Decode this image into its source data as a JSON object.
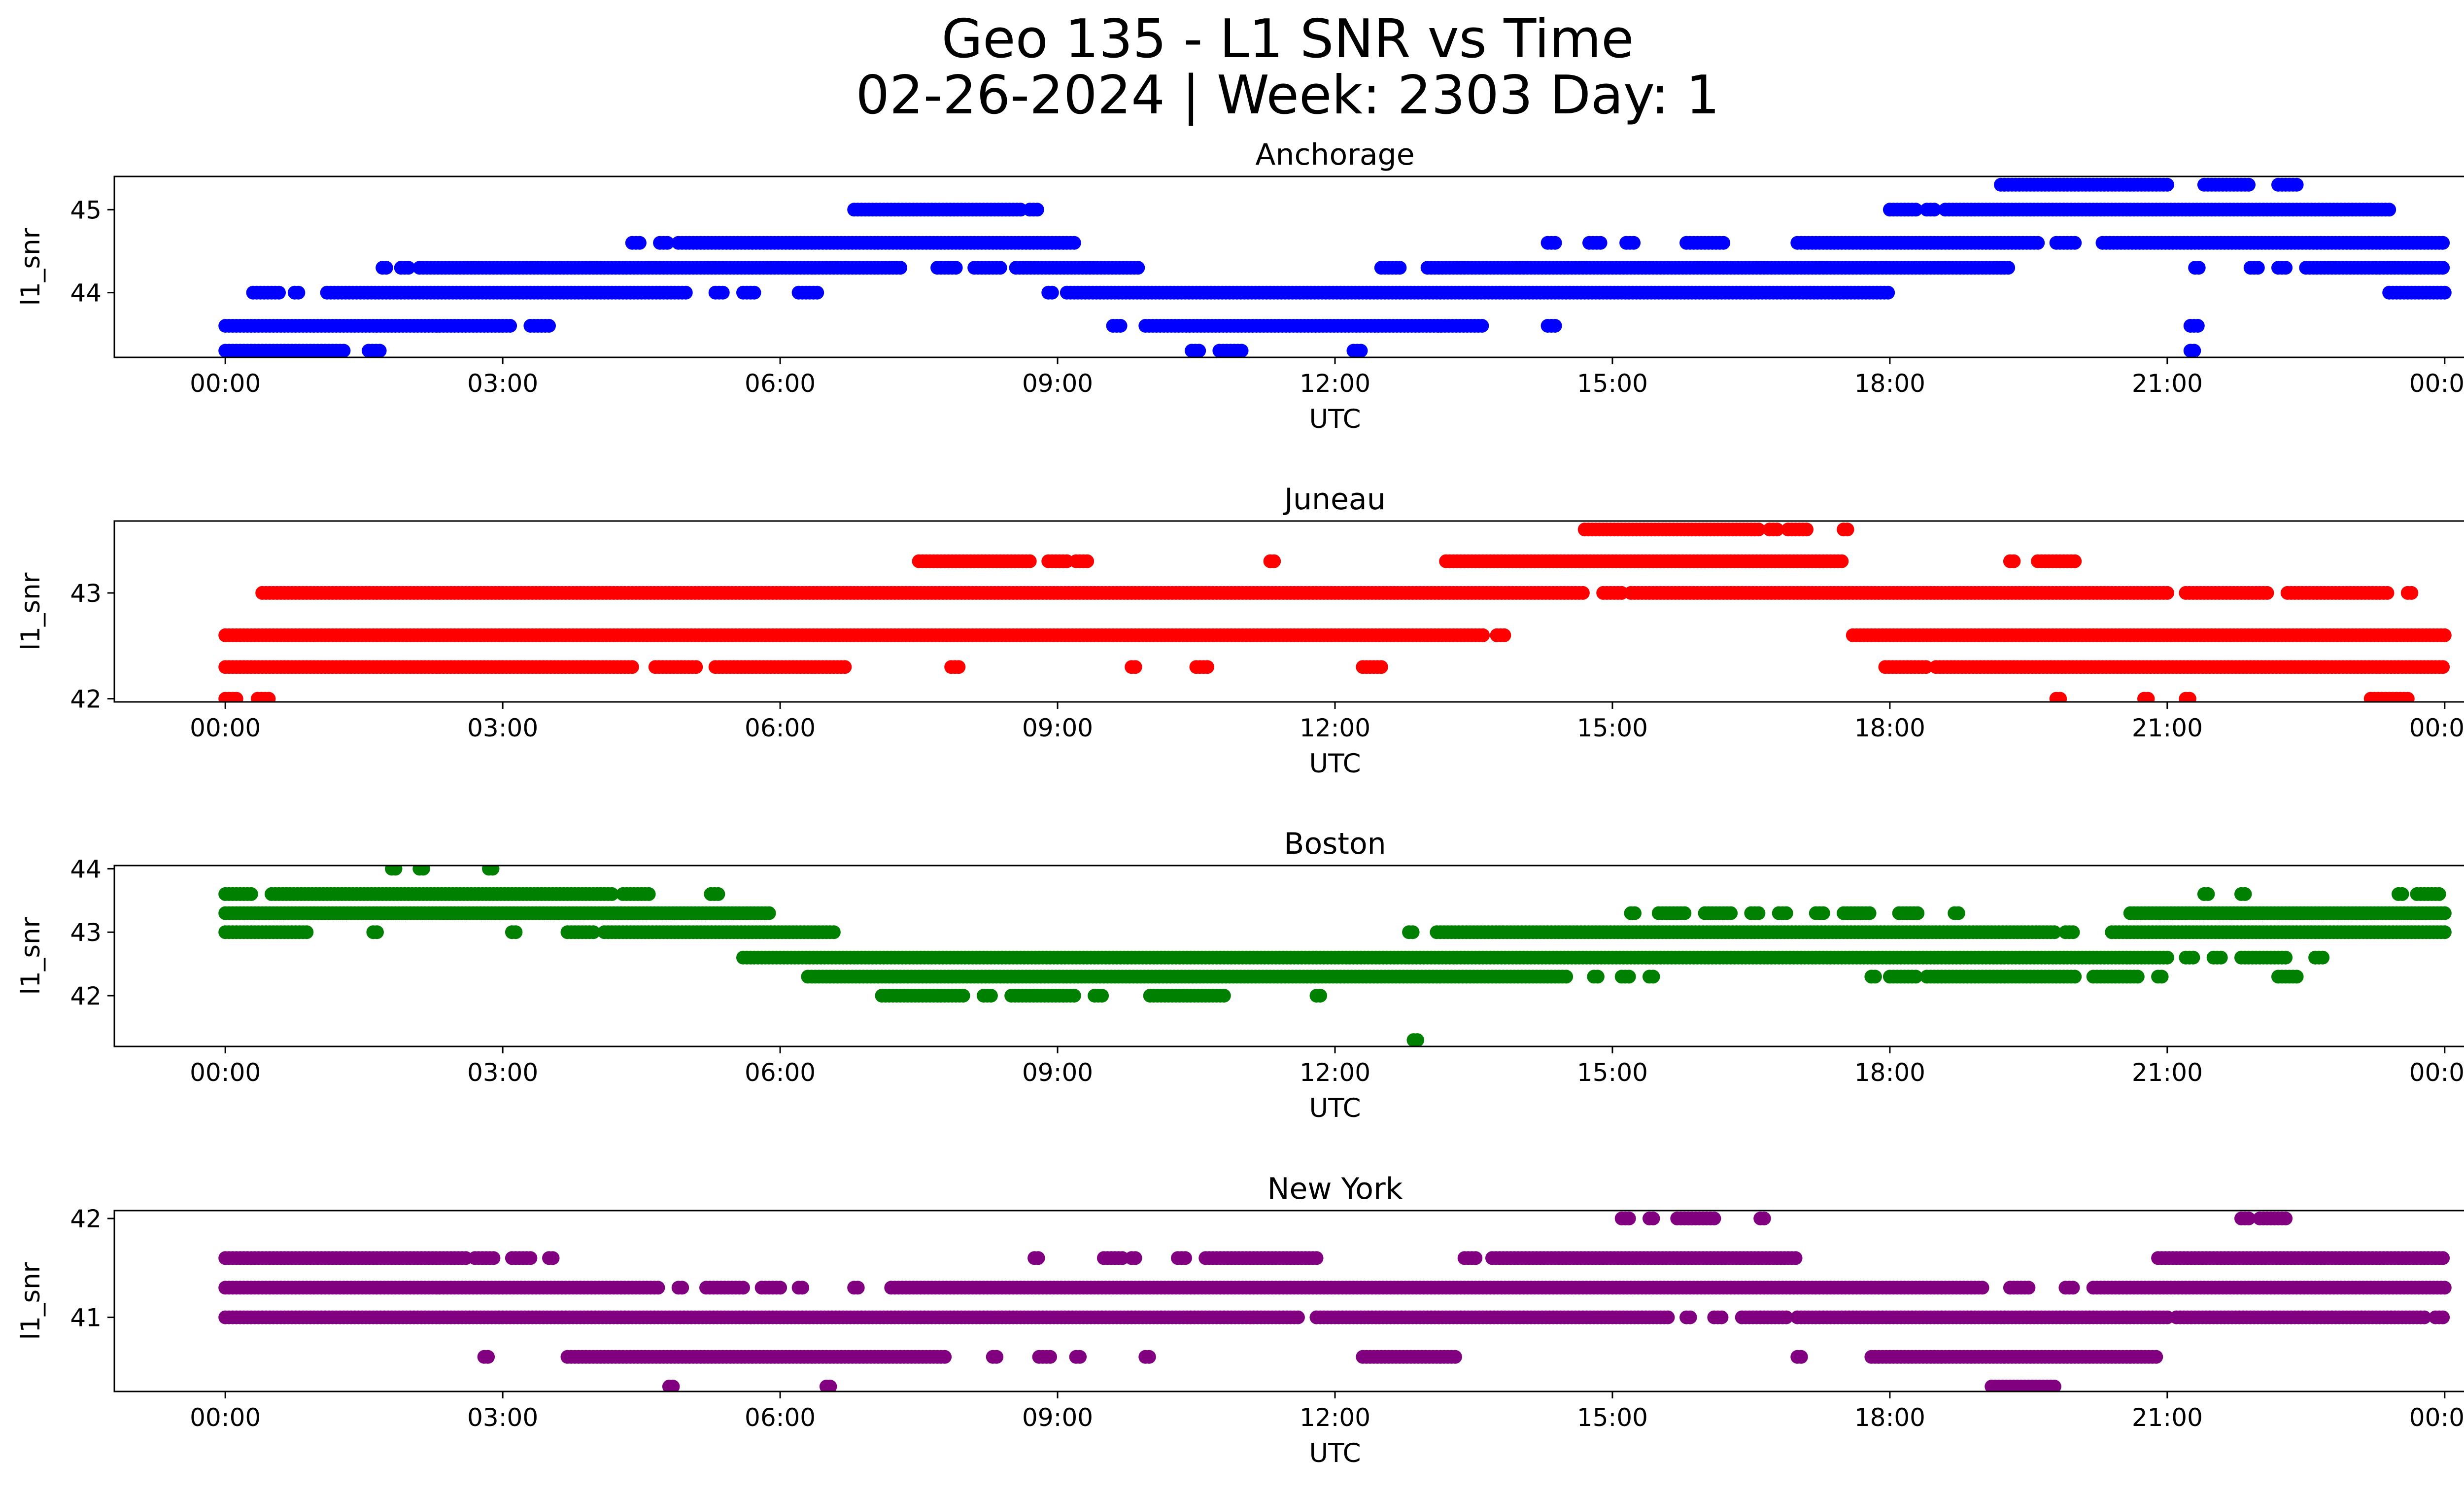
{
  "figure": {
    "title_line1": "Geo 135 - L1 SNR vs Time",
    "title_line2": "02-26-2024 | Week: 2303 Day: 1"
  },
  "chart_data": [
    {
      "type": "scatter",
      "title": "Anchorage",
      "xlabel": "UTC",
      "ylabel": "l1_snr",
      "color": "#0000ff",
      "xticks": [
        "00:00",
        "03:00",
        "06:00",
        "09:00",
        "12:00",
        "15:00",
        "18:00",
        "21:00",
        "00:00"
      ],
      "yticks": [
        44,
        45
      ],
      "xlim_hours": [
        -1.2,
        25.2
      ],
      "ylim": [
        43.22,
        45.4
      ],
      "series": [
        {
          "y": 43.3,
          "ranges": [
            [
              0.0,
              1.3
            ],
            [
              1.55,
              1.7
            ],
            [
              10.45,
              10.55
            ],
            [
              10.75,
              11.0
            ],
            [
              12.2,
              12.3
            ],
            [
              21.25,
              21.3
            ]
          ]
        },
        {
          "y": 43.6,
          "ranges": [
            [
              0.0,
              3.1
            ],
            [
              3.3,
              3.5
            ],
            [
              9.6,
              9.7
            ],
            [
              9.95,
              13.6
            ],
            [
              14.3,
              14.4
            ],
            [
              21.25,
              21.35
            ]
          ]
        },
        {
          "y": 44.0,
          "ranges": [
            [
              0.3,
              0.6
            ],
            [
              0.75,
              0.8
            ],
            [
              1.1,
              5.0
            ],
            [
              5.3,
              5.4
            ],
            [
              5.6,
              5.75
            ],
            [
              6.2,
              6.4
            ],
            [
              8.9,
              8.95
            ],
            [
              9.1,
              18.0
            ],
            [
              23.4,
              24.0
            ]
          ]
        },
        {
          "y": 44.3,
          "ranges": [
            [
              1.7,
              1.75
            ],
            [
              1.9,
              2.0
            ],
            [
              2.1,
              7.3
            ],
            [
              7.7,
              7.9
            ],
            [
              8.1,
              8.4
            ],
            [
              8.55,
              9.9
            ],
            [
              12.5,
              12.7
            ],
            [
              13.0,
              19.3
            ],
            [
              21.3,
              21.35
            ],
            [
              21.9,
              22.0
            ],
            [
              22.2,
              22.3
            ],
            [
              22.5,
              24.0
            ]
          ]
        },
        {
          "y": 44.6,
          "ranges": [
            [
              4.4,
              4.5
            ],
            [
              4.7,
              4.8
            ],
            [
              4.9,
              9.2
            ],
            [
              14.3,
              14.4
            ],
            [
              14.75,
              14.9
            ],
            [
              15.15,
              15.25
            ],
            [
              15.8,
              16.2
            ],
            [
              17.0,
              19.6
            ],
            [
              19.8,
              20.0
            ],
            [
              20.3,
              24.0
            ]
          ]
        },
        {
          "y": 45.0,
          "ranges": [
            [
              6.8,
              8.6
            ],
            [
              8.7,
              8.8
            ],
            [
              18.0,
              18.3
            ],
            [
              18.4,
              18.5
            ],
            [
              18.6,
              23.4
            ]
          ]
        },
        {
          "y": 45.3,
          "ranges": [
            [
              19.2,
              21.0
            ],
            [
              21.4,
              21.9
            ],
            [
              22.2,
              22.4
            ]
          ]
        }
      ]
    },
    {
      "type": "scatter",
      "title": "Juneau",
      "xlabel": "UTC",
      "ylabel": "l1_snr",
      "color": "#ff0000",
      "xticks": [
        "00:00",
        "03:00",
        "06:00",
        "09:00",
        "12:00",
        "15:00",
        "18:00",
        "21:00",
        "00:00"
      ],
      "yticks": [
        42,
        43
      ],
      "xlim_hours": [
        -1.2,
        25.2
      ],
      "ylim": [
        41.97,
        43.68
      ],
      "series": [
        {
          "y": 42.0,
          "ranges": [
            [
              0.0,
              0.15
            ],
            [
              0.35,
              0.5
            ],
            [
              19.8,
              19.85
            ],
            [
              20.75,
              20.8
            ],
            [
              21.2,
              21.25
            ],
            [
              23.2,
              23.6
            ]
          ]
        },
        {
          "y": 42.3,
          "ranges": [
            [
              0.0,
              4.4
            ],
            [
              4.65,
              5.1
            ],
            [
              5.3,
              6.7
            ],
            [
              7.85,
              7.95
            ],
            [
              9.8,
              9.85
            ],
            [
              10.5,
              10.65
            ],
            [
              12.3,
              12.5
            ],
            [
              17.95,
              18.4
            ],
            [
              18.5,
              24.0
            ]
          ]
        },
        {
          "y": 42.6,
          "ranges": [
            [
              0.0,
              13.6
            ],
            [
              13.75,
              13.85
            ],
            [
              17.6,
              24.0
            ]
          ]
        },
        {
          "y": 43.0,
          "ranges": [
            [
              0.4,
              14.7
            ],
            [
              14.9,
              15.1
            ],
            [
              15.2,
              21.0
            ],
            [
              21.2,
              22.1
            ],
            [
              22.3,
              23.4
            ],
            [
              23.6,
              23.65
            ]
          ]
        },
        {
          "y": 43.3,
          "ranges": [
            [
              7.5,
              8.7
            ],
            [
              8.9,
              9.1
            ],
            [
              9.2,
              9.35
            ],
            [
              11.3,
              11.35
            ],
            [
              13.2,
              17.5
            ],
            [
              19.3,
              19.35
            ],
            [
              19.6,
              20.0
            ]
          ]
        },
        {
          "y": 43.6,
          "ranges": [
            [
              14.7,
              16.6
            ],
            [
              16.7,
              16.8
            ],
            [
              16.9,
              17.1
            ],
            [
              17.5,
              17.55
            ]
          ]
        }
      ]
    },
    {
      "type": "scatter",
      "title": "Boston",
      "xlabel": "UTC",
      "ylabel": "l1_snr",
      "color": "#008000",
      "xticks": [
        "00:00",
        "03:00",
        "06:00",
        "09:00",
        "12:00",
        "15:00",
        "18:00",
        "21:00",
        "00:00"
      ],
      "yticks": [
        42,
        43,
        44
      ],
      "xlim_hours": [
        -1.2,
        25.2
      ],
      "ylim": [
        41.2,
        44.05
      ],
      "series": [
        {
          "y": 41.3,
          "ranges": [
            [
              12.85,
              12.9
            ]
          ]
        },
        {
          "y": 42.0,
          "ranges": [
            [
              7.1,
              8.0
            ],
            [
              8.2,
              8.3
            ],
            [
              8.5,
              9.2
            ],
            [
              9.4,
              9.5
            ],
            [
              10.0,
              10.8
            ],
            [
              11.8,
              11.85
            ]
          ]
        },
        {
          "y": 42.3,
          "ranges": [
            [
              6.3,
              14.5
            ],
            [
              14.8,
              14.85
            ],
            [
              15.1,
              15.2
            ],
            [
              15.4,
              15.45
            ],
            [
              17.8,
              17.85
            ],
            [
              18.0,
              18.3
            ],
            [
              18.4,
              20.0
            ],
            [
              20.2,
              20.7
            ],
            [
              20.9,
              20.95
            ],
            [
              22.2,
              22.4
            ]
          ]
        },
        {
          "y": 42.6,
          "ranges": [
            [
              5.6,
              21.0
            ],
            [
              21.2,
              21.3
            ],
            [
              21.5,
              21.6
            ],
            [
              21.8,
              22.3
            ],
            [
              22.6,
              22.7
            ]
          ]
        },
        {
          "y": 43.0,
          "ranges": [
            [
              0.0,
              0.9
            ],
            [
              1.6,
              1.65
            ],
            [
              3.1,
              3.15
            ],
            [
              3.7,
              4.0
            ],
            [
              4.1,
              6.6
            ],
            [
              12.8,
              12.85
            ],
            [
              13.1,
              19.8
            ],
            [
              19.9,
              20.0
            ],
            [
              20.4,
              24.0
            ]
          ]
        },
        {
          "y": 43.3,
          "ranges": [
            [
              0.0,
              5.9
            ],
            [
              15.2,
              15.25
            ],
            [
              15.5,
              15.8
            ],
            [
              16.0,
              16.3
            ],
            [
              16.5,
              16.6
            ],
            [
              16.8,
              16.9
            ],
            [
              17.2,
              17.3
            ],
            [
              17.5,
              17.8
            ],
            [
              18.1,
              18.3
            ],
            [
              18.7,
              18.75
            ],
            [
              20.6,
              24.0
            ]
          ]
        },
        {
          "y": 43.6,
          "ranges": [
            [
              0.0,
              0.3
            ],
            [
              0.5,
              4.2
            ],
            [
              4.3,
              4.6
            ],
            [
              5.25,
              5.35
            ],
            [
              21.4,
              21.45
            ],
            [
              21.8,
              21.85
            ],
            [
              23.5,
              23.55
            ],
            [
              23.7,
              23.95
            ]
          ]
        },
        {
          "y": 44.0,
          "ranges": [
            [
              1.8,
              1.85
            ],
            [
              2.1,
              2.15
            ],
            [
              2.85,
              2.9
            ]
          ]
        }
      ]
    },
    {
      "type": "scatter",
      "title": "New York",
      "xlabel": "UTC",
      "ylabel": "l1_snr",
      "color": "#800080",
      "xticks": [
        "00:00",
        "03:00",
        "06:00",
        "09:00",
        "12:00",
        "15:00",
        "18:00",
        "21:00",
        "00:00"
      ],
      "yticks": [
        41,
        42
      ],
      "xlim_hours": [
        -1.2,
        25.2
      ],
      "ylim": [
        40.25,
        42.08
      ],
      "series": [
        {
          "y": 40.3,
          "ranges": [
            [
              4.8,
              4.85
            ],
            [
              6.5,
              6.55
            ],
            [
              19.1,
              19.8
            ]
          ]
        },
        {
          "y": 40.6,
          "ranges": [
            [
              2.8,
              2.85
            ],
            [
              3.7,
              7.8
            ],
            [
              8.3,
              8.35
            ],
            [
              8.8,
              8.95
            ],
            [
              9.2,
              9.25
            ],
            [
              9.95,
              10.0
            ],
            [
              12.3,
              13.3
            ],
            [
              17.0,
              17.05
            ],
            [
              17.8,
              20.9
            ]
          ]
        },
        {
          "y": 41.0,
          "ranges": [
            [
              0.0,
              11.6
            ],
            [
              11.8,
              15.6
            ],
            [
              15.8,
              15.85
            ],
            [
              16.1,
              16.2
            ],
            [
              16.4,
              16.9
            ],
            [
              17.0,
              21.0
            ],
            [
              21.1,
              23.8
            ],
            [
              23.9,
              24.0
            ]
          ]
        },
        {
          "y": 41.3,
          "ranges": [
            [
              0.0,
              4.7
            ],
            [
              4.9,
              4.95
            ],
            [
              5.2,
              5.6
            ],
            [
              5.8,
              6.0
            ],
            [
              6.2,
              6.25
            ],
            [
              6.8,
              6.85
            ],
            [
              7.2,
              19.0
            ],
            [
              19.3,
              19.5
            ],
            [
              19.9,
              20.0
            ],
            [
              20.2,
              24.0
            ]
          ]
        },
        {
          "y": 41.6,
          "ranges": [
            [
              0.0,
              2.6
            ],
            [
              2.7,
              2.9
            ],
            [
              3.1,
              3.3
            ],
            [
              3.5,
              3.55
            ],
            [
              8.75,
              8.8
            ],
            [
              9.5,
              9.7
            ],
            [
              9.8,
              9.85
            ],
            [
              10.3,
              10.4
            ],
            [
              10.6,
              11.8
            ],
            [
              13.4,
              13.55
            ],
            [
              13.7,
              17.0
            ],
            [
              20.9,
              24.0
            ]
          ]
        },
        {
          "y": 42.0,
          "ranges": [
            [
              15.1,
              15.2
            ],
            [
              15.4,
              15.45
            ],
            [
              15.7,
              16.1
            ],
            [
              16.6,
              16.65
            ],
            [
              21.8,
              21.9
            ],
            [
              22.0,
              22.3
            ]
          ]
        }
      ]
    }
  ]
}
